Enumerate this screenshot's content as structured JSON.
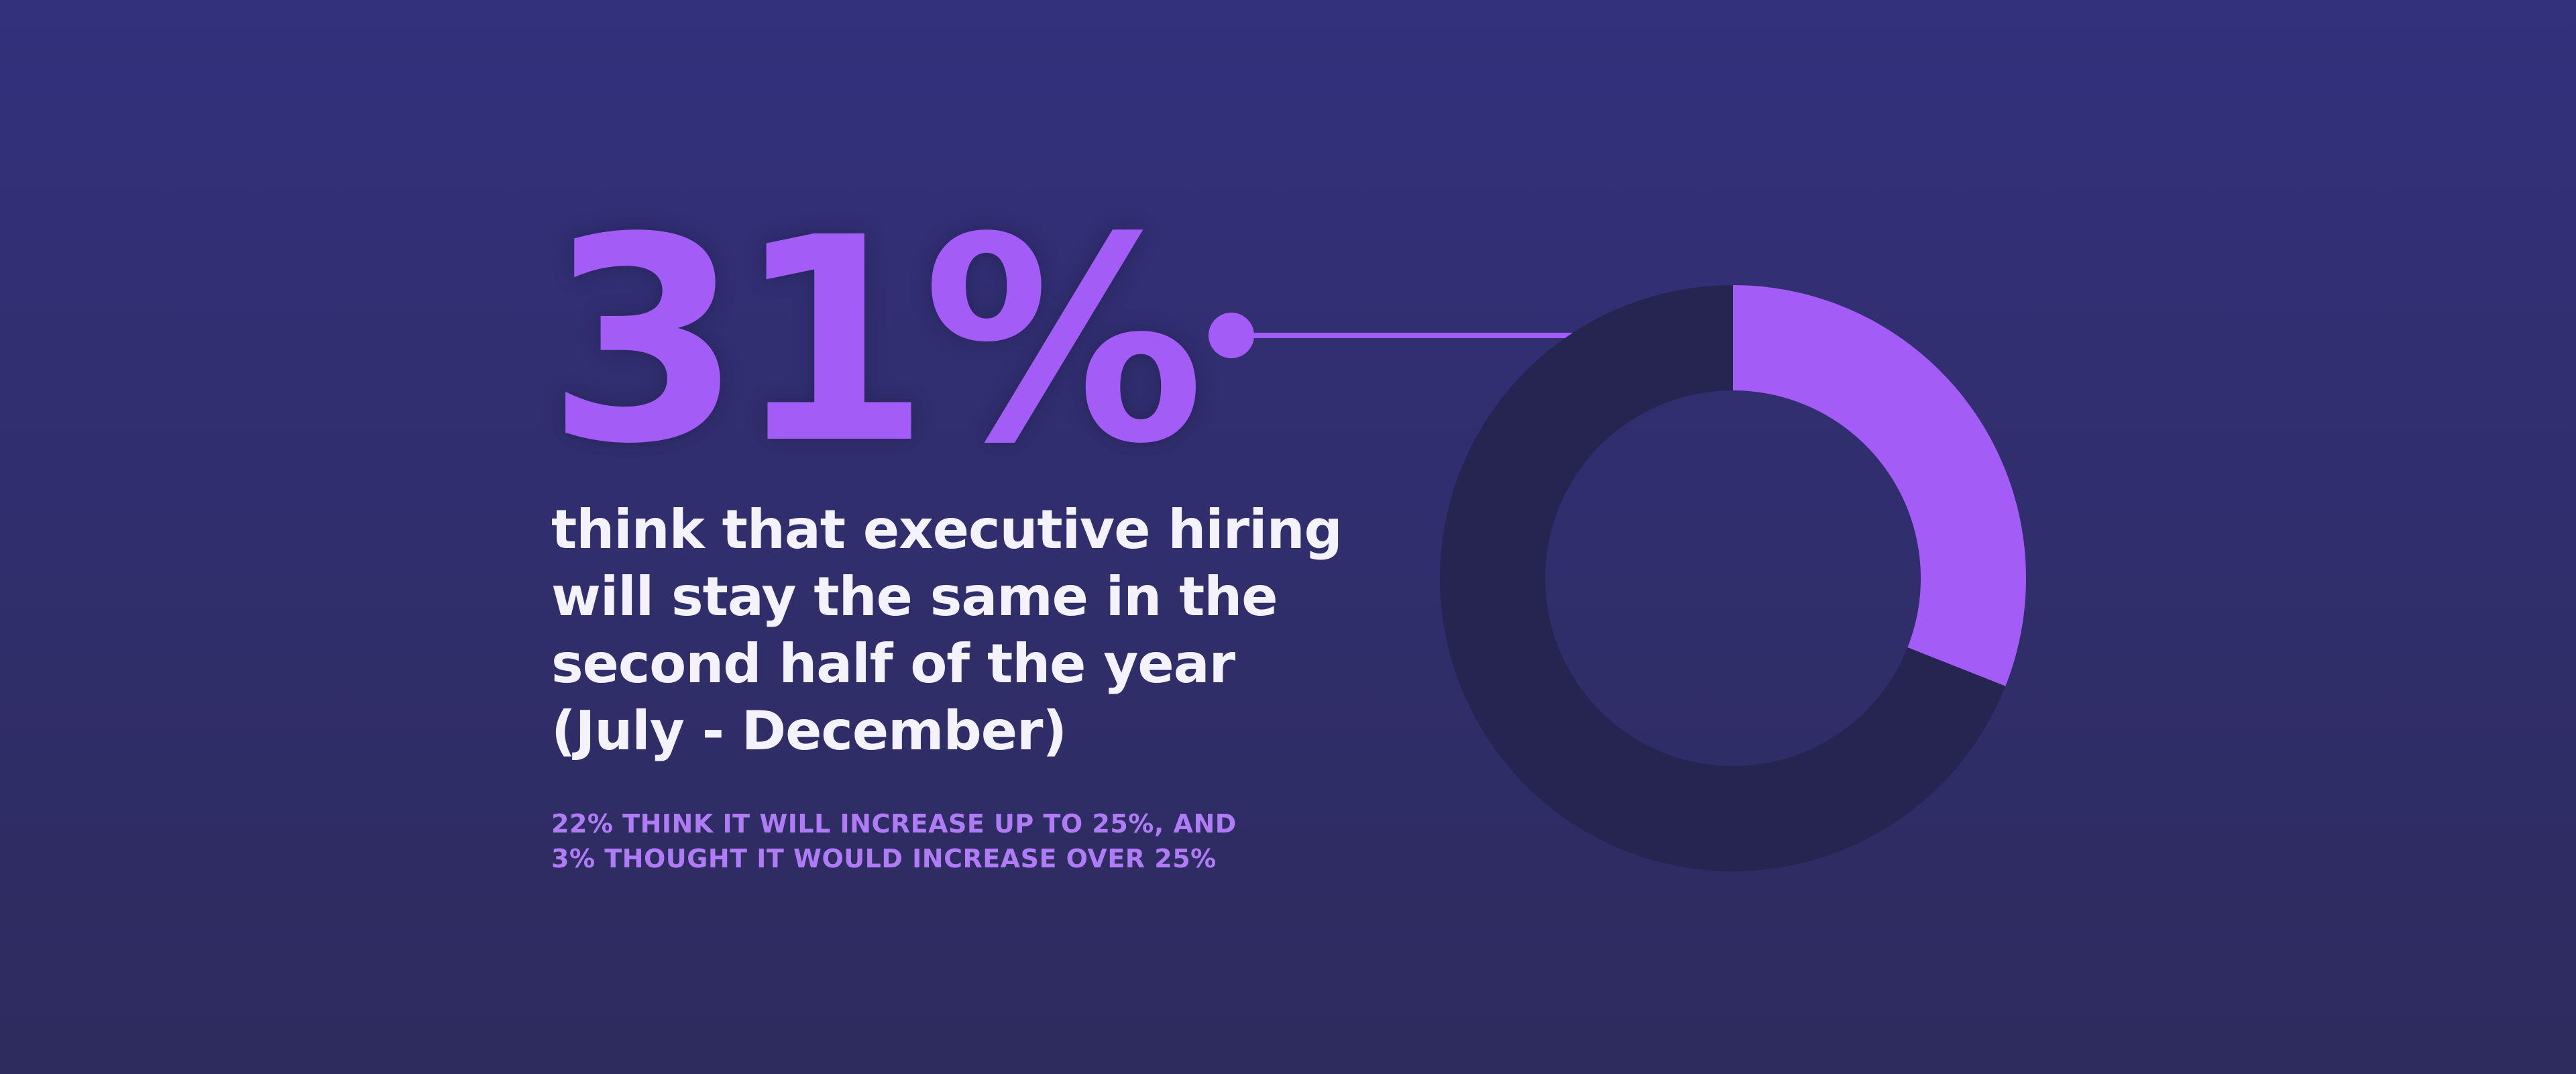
{
  "headline": {
    "stat": "31%",
    "lines": [
      "think that executive hiring",
      "will stay the same in the",
      "second half of the year",
      "(July - December)"
    ]
  },
  "footnote": {
    "lines": [
      "22% THINK IT WILL INCREASE UP TO 25%, AND",
      "3% THOUGHT IT WOULD INCREASE OVER 25%"
    ]
  },
  "colors": {
    "accent": "#a35df6",
    "track": "#262552",
    "text": "#f4f2ff",
    "footnote": "#b07cf6"
  },
  "chart_data": {
    "type": "pie",
    "style": "donut",
    "title": "",
    "categories": [
      "stay the same",
      "other"
    ],
    "values": [
      31,
      69
    ],
    "highlight_index": 0,
    "legend": "none"
  }
}
